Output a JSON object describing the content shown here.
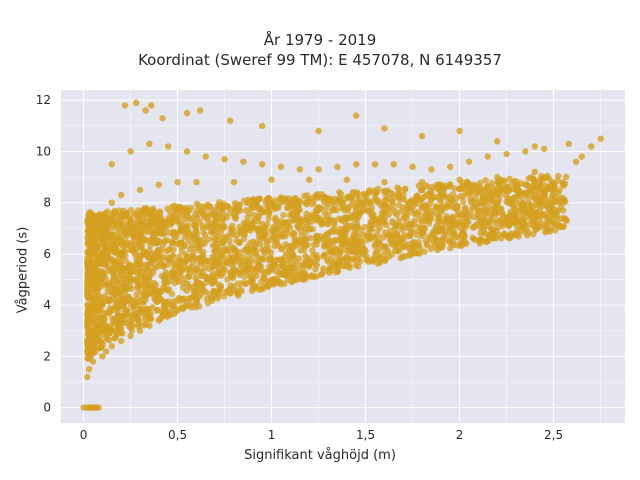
{
  "chart_data": {
    "type": "scatter",
    "title": "År 1979 - 2019",
    "subtitle": "Koordinat (Sweref 99 TM): E 457078, N 6149357",
    "xlabel": "Signifikant våghöjd (m)",
    "ylabel": "Vågperiod (s)",
    "xlim": [
      -0.12,
      2.88
    ],
    "ylim": [
      -0.6,
      12.4
    ],
    "x_ticks": [
      0,
      0.5,
      1,
      1.5,
      2,
      2.5
    ],
    "x_tick_labels": [
      "0",
      "0,5",
      "1",
      "1,5",
      "2",
      "2,5"
    ],
    "y_ticks": [
      0,
      2,
      4,
      6,
      8,
      10,
      12
    ],
    "y_tick_labels": [
      "0",
      "2",
      "4",
      "6",
      "8",
      "10",
      "12"
    ],
    "grid": true,
    "marker_color": "#d4a020",
    "plot_background": "#e5e5ef",
    "series": [
      {
        "x": [
          0.0,
          0.02,
          0.04,
          0.06,
          0.08,
          0.02,
          0.03,
          0.05,
          0.02,
          0.04,
          0.03,
          0.06,
          0.1,
          0.12,
          0.15,
          0.2,
          0.25,
          0.3,
          0.35,
          0.4,
          0.45,
          0.5,
          0.6,
          0.7,
          0.8,
          0.9,
          1.0,
          1.1,
          1.2,
          1.3,
          1.4,
          1.5,
          1.6,
          1.7,
          1.8,
          1.9,
          2.0,
          2.1,
          2.2,
          2.3,
          2.4,
          2.5,
          2.55,
          0.05,
          0.08,
          0.1,
          0.15,
          0.2,
          0.3,
          0.4,
          0.5,
          0.6,
          0.8,
          1.0,
          1.2,
          1.4,
          1.6,
          1.8,
          2.0,
          2.2,
          2.4,
          0.04,
          0.06,
          0.1,
          0.2,
          0.3,
          0.4,
          0.5,
          0.7,
          0.9,
          1.1,
          1.3,
          1.5,
          1.7,
          1.9,
          2.1,
          2.3,
          2.5,
          0.15,
          0.25,
          0.35,
          0.45,
          0.55,
          0.65,
          0.75,
          0.85,
          0.95,
          1.05,
          1.15,
          1.25,
          1.35,
          1.45,
          1.55,
          1.65,
          1.75,
          1.85,
          1.95,
          2.05,
          2.15,
          2.25,
          2.35,
          2.45,
          0.22,
          0.28,
          0.33,
          0.36,
          0.42,
          0.55,
          0.62,
          0.78,
          0.95,
          1.25,
          1.45,
          1.6,
          1.8,
          2.0,
          2.2,
          2.4,
          2.58,
          2.65,
          2.7,
          2.75,
          2.62,
          0.05,
          0.04,
          0.03,
          0.07
        ],
        "y": [
          0.0,
          0.0,
          0.0,
          0.0,
          0.0,
          1.2,
          1.5,
          1.8,
          2.5,
          3.0,
          3.5,
          4.0,
          2.0,
          2.2,
          2.4,
          2.6,
          2.8,
          3.0,
          3.2,
          3.4,
          3.6,
          3.8,
          4.1,
          4.4,
          4.6,
          4.8,
          5.0,
          5.3,
          5.5,
          5.7,
          5.9,
          6.1,
          6.3,
          6.5,
          6.8,
          7.0,
          7.2,
          7.5,
          7.8,
          8.0,
          8.3,
          8.5,
          8.8,
          6.5,
          7.0,
          7.5,
          8.0,
          8.3,
          8.5,
          8.7,
          8.8,
          8.8,
          8.8,
          8.9,
          8.9,
          8.9,
          8.8,
          8.8,
          8.9,
          9.0,
          9.2,
          5.0,
          5.5,
          6.0,
          6.5,
          7.0,
          7.2,
          7.4,
          7.6,
          7.8,
          8.0,
          8.1,
          8.2,
          8.3,
          8.3,
          8.4,
          8.5,
          8.7,
          9.5,
          10.0,
          10.3,
          10.2,
          10.0,
          9.8,
          9.7,
          9.6,
          9.5,
          9.4,
          9.3,
          9.3,
          9.4,
          9.5,
          9.5,
          9.5,
          9.4,
          9.3,
          9.4,
          9.6,
          9.8,
          9.9,
          10.0,
          10.1,
          11.8,
          11.9,
          11.6,
          11.8,
          11.3,
          11.5,
          11.6,
          11.2,
          11.0,
          10.8,
          11.4,
          10.9,
          10.6,
          10.8,
          10.4,
          10.2,
          10.3,
          9.8,
          10.2,
          10.5,
          9.6,
          0.0,
          0.0,
          0.0,
          0.0
        ]
      }
    ]
  }
}
